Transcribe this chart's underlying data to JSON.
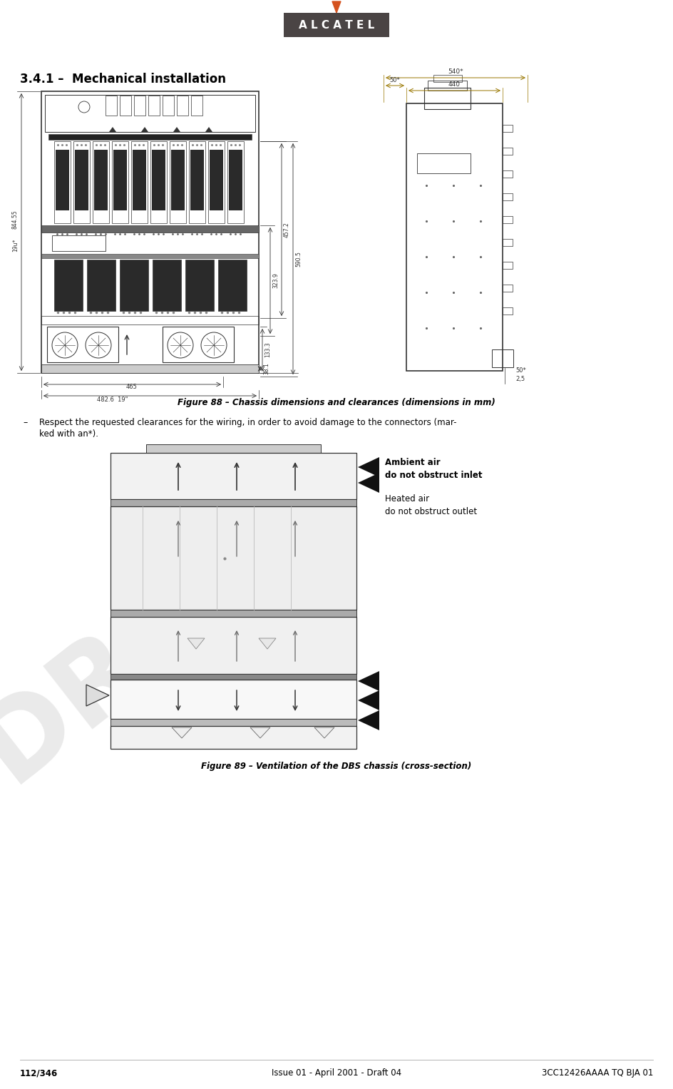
{
  "page_width": 9.44,
  "page_height": 15.27,
  "bg_color": "#ffffff",
  "logo_text": "A L C A T E L",
  "logo_bg": "#4a4444",
  "logo_text_color": "#ffffff",
  "logo_arrow_color": "#d4521e",
  "section_title": "3.4.1 –  Mechanical installation",
  "fig88_caption": "Figure 88 – Chassis dimensions and clearances (dimensions in mm)",
  "fig89_caption": "Figure 89 – Ventilation of the DBS chassis (cross-section)",
  "bullet_text_line1": "Respect the requested clearances for the wiring, in order to avoid damage to the connectors (mar-",
  "bullet_text_line2": "ked with an*).",
  "footer_left": "112/346",
  "footer_center": "Issue 01 - April 2001 - Draft 04",
  "footer_right": "3CC12426AAAA TQ BJA 01",
  "ambient_air_bold": "Ambient air\ndo not obstruct inlet",
  "heated_air": "Heated air\ndo not obstruct outlet",
  "line_color": "#333333",
  "dim_color": "#333333",
  "watermark_color": "#c8c8c8"
}
